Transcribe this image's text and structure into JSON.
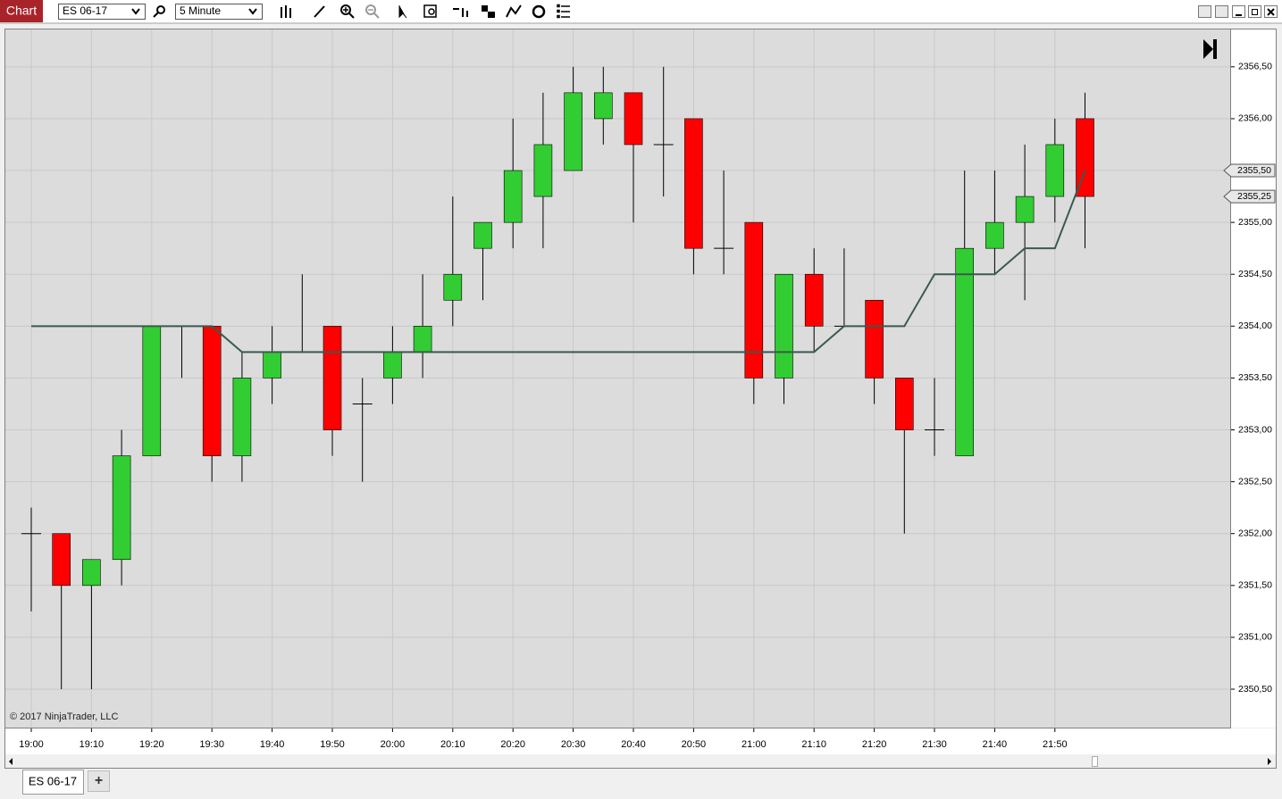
{
  "toolbar": {
    "app": "Chart",
    "instrument": "ES 06-17",
    "interval": "5 Minute"
  },
  "chart_data": {
    "type": "candlestick",
    "categories": [
      "19:00",
      null,
      "19:10",
      null,
      "19:20",
      null,
      "19:30",
      null,
      "19:40",
      null,
      "19:50",
      null,
      "20:00",
      null,
      "20:10",
      null,
      "20:20",
      null,
      "20:30",
      null,
      "20:40",
      null,
      "20:50",
      null,
      "21:00",
      null,
      "21:10",
      null,
      "21:20",
      null,
      "21:30",
      null,
      "21:40",
      null,
      "21:50",
      null
    ],
    "open": [
      2352.0,
      2352.0,
      2351.5,
      2351.75,
      2352.75,
      2354.0,
      2354.0,
      2352.75,
      2353.5,
      2353.75,
      2354.0,
      2353.25,
      2353.5,
      2353.75,
      2354.25,
      2354.75,
      2355.0,
      2355.25,
      2355.5,
      2356.0,
      2356.25,
      2355.75,
      2356.0,
      2354.75,
      2355.0,
      2353.5,
      2354.5,
      2354.0,
      2354.25,
      2353.5,
      2353.0,
      2352.75,
      2354.75,
      2355.0,
      2355.25,
      2356.0
    ],
    "high": [
      2352.25,
      2352.0,
      2351.75,
      2353.0,
      2354.0,
      2354.0,
      2354.0,
      2353.75,
      2354.0,
      2354.5,
      2354.0,
      2353.5,
      2354.0,
      2354.5,
      2355.25,
      2355.0,
      2356.0,
      2356.25,
      2356.5,
      2356.5,
      2356.25,
      2356.5,
      2356.0,
      2355.5,
      2355.0,
      2354.5,
      2354.75,
      2354.75,
      2354.25,
      2353.5,
      2353.5,
      2355.5,
      2355.5,
      2355.75,
      2356.0,
      2356.25
    ],
    "low": [
      2351.25,
      2350.5,
      2350.5,
      2351.5,
      2352.75,
      2353.5,
      2352.5,
      2352.5,
      2353.25,
      2353.75,
      2352.75,
      2352.5,
      2353.25,
      2353.5,
      2354.0,
      2354.25,
      2354.75,
      2354.75,
      2355.5,
      2355.75,
      2355.0,
      2355.25,
      2354.5,
      2354.5,
      2353.25,
      2353.25,
      2353.75,
      2354.0,
      2353.25,
      2352.0,
      2352.75,
      2352.75,
      2354.5,
      2354.25,
      2355.0,
      2354.75
    ],
    "close": [
      2352.0,
      2351.5,
      2351.75,
      2352.75,
      2354.0,
      2354.0,
      2352.75,
      2353.5,
      2353.75,
      2353.75,
      2353.0,
      2353.25,
      2353.75,
      2354.0,
      2354.5,
      2355.0,
      2355.5,
      2355.75,
      2356.25,
      2356.25,
      2355.75,
      2355.75,
      2354.75,
      2354.75,
      2353.5,
      2354.5,
      2354.0,
      2354.0,
      2353.5,
      2353.0,
      2353.0,
      2354.75,
      2355.0,
      2355.25,
      2355.75,
      2355.25
    ],
    "up_color": "#32cd32",
    "down_color": "#ff0000",
    "overlay": {
      "type": "line",
      "color": "#3a5a50",
      "values": [
        2354.0,
        2354.0,
        2354.0,
        2354.0,
        2354.0,
        2354.0,
        2354.0,
        2353.75,
        2353.75,
        2353.75,
        2353.75,
        2353.75,
        2353.75,
        2353.75,
        2353.75,
        2353.75,
        2353.75,
        2353.75,
        2353.75,
        2353.75,
        2353.75,
        2353.75,
        2353.75,
        2353.75,
        2353.75,
        2353.75,
        2353.75,
        2354.0,
        2354.0,
        2354.0,
        2354.5,
        2354.5,
        2354.5,
        2354.75,
        2354.75,
        2355.5
      ]
    },
    "ylim": [
      2350.13,
      2356.86
    ],
    "yticks": [
      {
        "value": 2350.5,
        "label": "2350,50"
      },
      {
        "value": 2351.0,
        "label": "2351,00"
      },
      {
        "value": 2351.5,
        "label": "2351,50"
      },
      {
        "value": 2352.0,
        "label": "2352,00"
      },
      {
        "value": 2352.5,
        "label": "2352,50"
      },
      {
        "value": 2353.0,
        "label": "2353,00"
      },
      {
        "value": 2353.5,
        "label": "2353,50"
      },
      {
        "value": 2354.0,
        "label": "2354,00"
      },
      {
        "value": 2354.5,
        "label": "2354,50"
      },
      {
        "value": 2355.0,
        "label": "2355,00"
      },
      {
        "value": 2355.5,
        "label": "2355,50"
      },
      {
        "value": 2356.0,
        "label": "2356,00"
      },
      {
        "value": 2356.5,
        "label": "2356,50"
      }
    ],
    "price_markers": [
      {
        "value": 2355.5,
        "label": "2355,50"
      },
      {
        "value": 2355.25,
        "label": "2355,25"
      }
    ],
    "grid": true,
    "copyright": "© 2017 NinjaTrader, LLC"
  },
  "tabs": {
    "items": [
      "ES 06-17"
    ],
    "add": "+"
  }
}
